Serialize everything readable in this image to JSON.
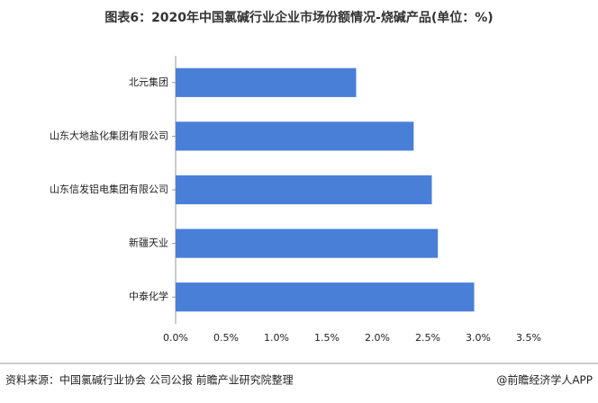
{
  "chart_data": {
    "type": "barh",
    "title": "图表6：2020年中国氯碱行业企业市场份额情况-烧碱产品(单位：%)",
    "categories": [
      "北元集团",
      "山东大地盐化集团有限公司",
      "山东信发铝电集团有限公司",
      "新疆天业",
      "中泰化学"
    ],
    "values": [
      1.79,
      2.36,
      2.54,
      2.6,
      2.96
    ],
    "color": "#4a7fd8",
    "xlim": [
      0,
      3.5
    ],
    "xticks": [
      {
        "value": 0,
        "label": "0.0%"
      },
      {
        "value": 0.5,
        "label": "0.5%"
      },
      {
        "value": 1,
        "label": "1.0%"
      },
      {
        "value": 1.5,
        "label": "1.5%"
      },
      {
        "value": 2,
        "label": "2.0%"
      },
      {
        "value": 2.5,
        "label": "2.5%"
      },
      {
        "value": 3,
        "label": "3.0%"
      },
      {
        "value": 3.5,
        "label": "3.5%"
      }
    ],
    "grid": false,
    "source": "资料来源：中国氯碱行业协会 公司公报 前瞻产业研究院整理",
    "credit": "@前瞻经济学人APP"
  }
}
